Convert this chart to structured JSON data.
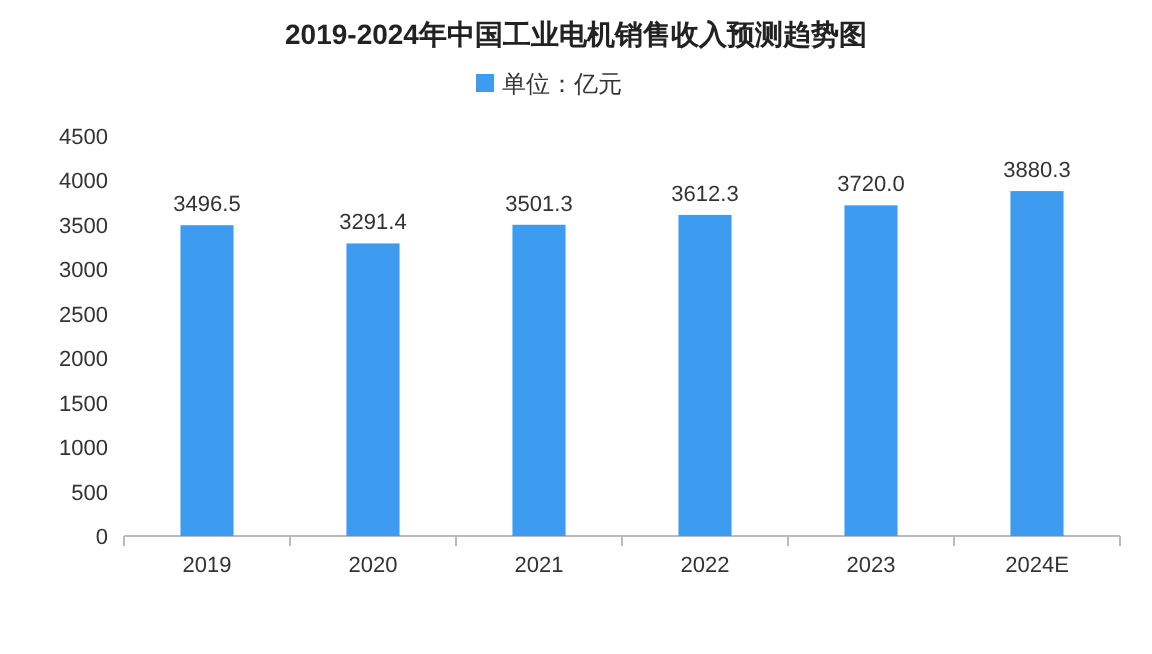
{
  "chart_data": {
    "type": "bar",
    "title": "2019-2024年中国工业电机销售收入预测趋势图",
    "categories": [
      "2019",
      "2020",
      "2021",
      "2022",
      "2023",
      "2024E"
    ],
    "series": [
      {
        "name": "单位：亿元",
        "color": "#3d9cf0",
        "values": [
          3496.5,
          3291.4,
          3501.3,
          3612.3,
          3720.0,
          3880.3
        ],
        "value_labels": [
          "3496.5",
          "3291.4",
          "3501.3",
          "3612.3",
          "3720.0",
          "3880.3"
        ]
      }
    ],
    "ylim": [
      0,
      4500
    ],
    "yticks": [
      0,
      500,
      1000,
      1500,
      2000,
      2500,
      3000,
      3500,
      4000,
      4500
    ],
    "legend": "top",
    "grid": false
  }
}
